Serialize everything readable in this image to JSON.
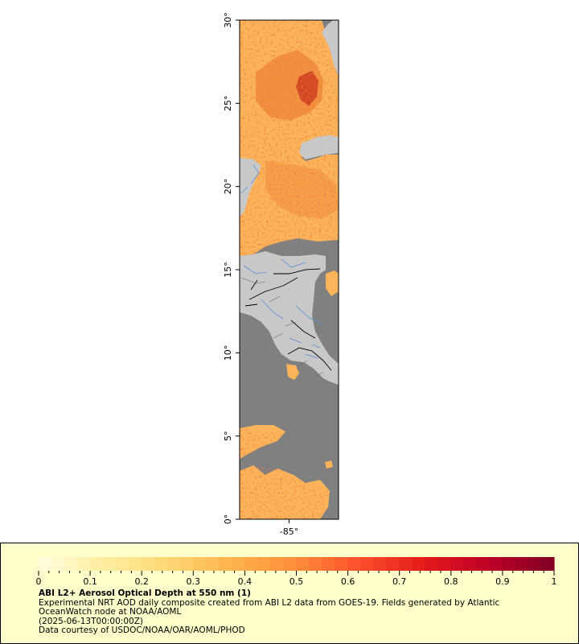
{
  "map": {
    "lat_ticks": [
      "0°",
      "5°",
      "10°",
      "15°",
      "20°",
      "25°",
      "30°"
    ],
    "lon_ticks": [
      "-85°"
    ],
    "lat_range": [
      0,
      30
    ],
    "lon_range": [
      -88,
      -82
    ],
    "colors": {
      "land": "#c8c8c8",
      "ocean_no_data": "#808080",
      "borders": "#000000",
      "rivers": "#5b8fd6"
    }
  },
  "colorbar": {
    "ticks": [
      "0",
      "0.1",
      "0.2",
      "0.3",
      "0.4",
      "0.5",
      "0.6",
      "0.7",
      "0.8",
      "0.9",
      "1"
    ],
    "range": [
      0,
      1
    ],
    "colors": [
      "#ffffe0",
      "#ffeda0",
      "#fed976",
      "#feb24c",
      "#fd8d3c",
      "#fc4e2a",
      "#e31a1c",
      "#bd0026",
      "#800026"
    ]
  },
  "caption": {
    "title": "ABI L2+ Aerosol Optical Depth at 550 nm (1)",
    "line1": "Experimental NRT AOD daily composite created from ABI L2 data from GOES-19. Fields generated by Atlantic",
    "line2": "OceanWatch node at NOAA/AOML",
    "line3": "(2025-06-13T00:00:00Z)",
    "line4": "Data courtesy of USDOC/NOAA/OAR/AOML/PHOD"
  }
}
